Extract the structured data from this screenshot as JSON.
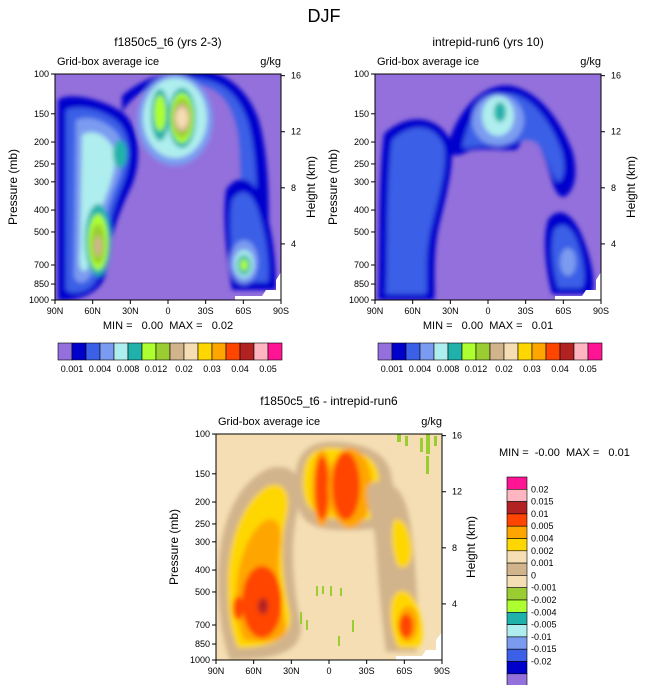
{
  "figure_title": "DJF",
  "chart_data": [
    {
      "type": "heatmap",
      "title": "f1850c5_t6 (yrs 2-3)",
      "subtitle_left": "Grid-box average ice",
      "subtitle_right": "g/kg",
      "xlabel": "",
      "ylabel": "Pressure (mb)",
      "y2label": "Height (km)",
      "x_ticks": [
        "90N",
        "60N",
        "30N",
        "0",
        "30S",
        "60S",
        "90S"
      ],
      "y_ticks": [
        "100",
        "150",
        "200",
        "250",
        "300",
        "400",
        "500",
        "700",
        "850",
        "1000"
      ],
      "y2_ticks": [
        "16",
        "12",
        "8",
        "4"
      ],
      "min_max": "MIN =   0.00  MAX =   0.02",
      "levels": [
        "0.001",
        "0.004",
        "0.008",
        "0.012",
        "0.02",
        "0.03",
        "0.04",
        "0.05"
      ],
      "colors": [
        "#9370db",
        "#0000cd",
        "#3b5fe6",
        "#7b9bf0",
        "#afeeee",
        "#20b2aa",
        "#adff2f",
        "#9acd32",
        "#d2b48c",
        "#f5deb3",
        "#ffd700",
        "#ffa500",
        "#ff4500",
        "#b22222",
        "#ffb6c1",
        "#ff1493"
      ],
      "colorbar_orientation": "horizontal"
    },
    {
      "type": "heatmap",
      "title": "intrepid-run6 (yrs 10)",
      "subtitle_left": "Grid-box average ice",
      "subtitle_right": "g/kg",
      "xlabel": "",
      "ylabel": "Pressure (mb)",
      "y2label": "Height (km)",
      "x_ticks": [
        "90N",
        "60N",
        "30N",
        "0",
        "30S",
        "60S",
        "90S"
      ],
      "y_ticks": [
        "100",
        "150",
        "200",
        "250",
        "300",
        "400",
        "500",
        "700",
        "850",
        "1000"
      ],
      "y2_ticks": [
        "16",
        "12",
        "8",
        "4"
      ],
      "min_max": "MIN =   0.00  MAX =   0.01",
      "levels": [
        "0.001",
        "0.004",
        "0.008",
        "0.012",
        "0.02",
        "0.03",
        "0.04",
        "0.05"
      ],
      "colors": [
        "#9370db",
        "#0000cd",
        "#3b5fe6",
        "#7b9bf0",
        "#afeeee",
        "#20b2aa",
        "#adff2f",
        "#9acd32",
        "#d2b48c",
        "#f5deb3",
        "#ffd700",
        "#ffa500",
        "#ff4500",
        "#b22222",
        "#ffb6c1",
        "#ff1493"
      ],
      "colorbar_orientation": "horizontal"
    },
    {
      "type": "heatmap",
      "title": "f1850c5_t6 - intrepid-run6",
      "subtitle_left": "Grid-box average ice",
      "subtitle_right": "g/kg",
      "xlabel": "",
      "ylabel": "Pressure (mb)",
      "y2label": "Height (km)",
      "x_ticks": [
        "90N",
        "60N",
        "30N",
        "0",
        "30S",
        "60S",
        "90S"
      ],
      "y_ticks": [
        "100",
        "150",
        "200",
        "250",
        "300",
        "400",
        "500",
        "700",
        "850",
        "1000"
      ],
      "y2_ticks": [
        "16",
        "12",
        "8",
        "4"
      ],
      "min_max": "MIN =  -0.00  MAX =   0.01",
      "levels": [
        "0.02",
        "0.015",
        "0.01",
        "0.005",
        "0.004",
        "0.002",
        "0.001",
        "0",
        "-0.001",
        "-0.002",
        "-0.004",
        "-0.005",
        "-0.01",
        "-0.015",
        "-0.02"
      ],
      "colors": [
        "#ff1493",
        "#ffb6c1",
        "#b22222",
        "#ff4500",
        "#ffa500",
        "#ffd700",
        "#f5deb3",
        "#d2b48c",
        "#f5deb3",
        "#9acd32",
        "#adff2f",
        "#20b2aa",
        "#afeeee",
        "#7b9bf0",
        "#3b5fe6",
        "#0000cd",
        "#9370db"
      ],
      "colorbar_orientation": "vertical"
    }
  ]
}
